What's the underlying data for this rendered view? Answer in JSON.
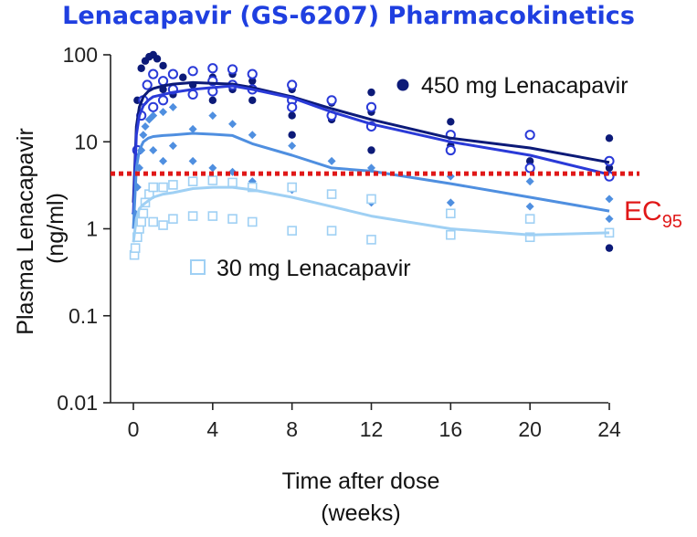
{
  "title": "Lenacapavir (GS-6207) Pharmacokinetics",
  "colors": {
    "title": "#1f3fe0",
    "dose_450": "#0c1a78",
    "dose_300": "#2a3ad8",
    "dose_100": "#4f8fe0",
    "dose_30": "#9fd0f4",
    "ec95": "#e01818"
  },
  "chart_data": {
    "type": "scatter",
    "title": "Lenacapavir (GS-6207) Pharmacokinetics",
    "xlabel_line1": "Time after dose",
    "xlabel_line2": "(weeks)",
    "ylabel_line1": "Plasma Lenacapavir",
    "ylabel_line2": "(ng/ml)",
    "xlim": [
      -1,
      24.5
    ],
    "ylim": [
      0.01,
      100
    ],
    "yscale": "log",
    "x_ticks": [
      0,
      4,
      8,
      12,
      16,
      20,
      24
    ],
    "x_tick_labels": [
      "0",
      "4",
      "8",
      "12",
      "16",
      "20",
      "24"
    ],
    "y_ticks": [
      0.01,
      0.1,
      1,
      10,
      100
    ],
    "y_tick_labels": [
      "0.01",
      "0.1",
      "1",
      "10",
      "100"
    ],
    "legend": [
      {
        "label": "450 mg Lenacapavir",
        "marker": "filled-circle"
      },
      {
        "label": "30 mg Lenacapavir",
        "marker": "open-square"
      }
    ],
    "reference_line": {
      "label_base": "EC",
      "label_sub": "95",
      "y": 4.3,
      "style": "dotted"
    },
    "series": [
      {
        "name": "450 mg Lenacapavir",
        "marker": "filled-circle",
        "mean_x": [
          0,
          0.15,
          0.3,
          0.5,
          0.75,
          1,
          1.5,
          2,
          3,
          4,
          5,
          6,
          8,
          10,
          12,
          16,
          20,
          24
        ],
        "mean_y": [
          2,
          15,
          25,
          33,
          38,
          41,
          44,
          46,
          48,
          47,
          46,
          42,
          33,
          24,
          18,
          11,
          8.5,
          5.8
        ],
        "points_x": [
          0.2,
          0.4,
          0.6,
          0.8,
          1,
          1,
          1.2,
          1.5,
          1.5,
          2,
          2,
          2.5,
          3,
          3,
          4,
          4,
          5,
          5,
          6,
          6,
          8,
          8,
          8,
          10,
          10,
          12,
          12,
          12,
          16,
          16,
          20,
          20,
          24,
          24,
          24
        ],
        "points_y": [
          30,
          70,
          85,
          95,
          100,
          60,
          90,
          75,
          40,
          60,
          35,
          55,
          65,
          45,
          55,
          30,
          60,
          40,
          50,
          30,
          40,
          20,
          12,
          28,
          18,
          37,
          22,
          8,
          17,
          9,
          12,
          6,
          11,
          0.6,
          5
        ]
      },
      {
        "name": "",
        "marker": "open-circle",
        "mean_x": [
          0,
          0.15,
          0.3,
          0.5,
          0.75,
          1,
          1.5,
          2,
          3,
          4,
          5,
          6,
          8,
          10,
          12,
          16,
          20,
          24
        ],
        "mean_y": [
          1.5,
          12,
          20,
          26,
          30,
          33,
          35,
          37,
          40,
          42,
          44,
          40,
          32,
          22,
          16,
          10,
          7,
          4.2
        ],
        "points_x": [
          0.2,
          0.4,
          0.5,
          0.7,
          1,
          1,
          1.5,
          1.5,
          2,
          2,
          3,
          3,
          4,
          4,
          4,
          5,
          5,
          6,
          6,
          8,
          8,
          8,
          10,
          10,
          12,
          12,
          16,
          16,
          20,
          20,
          24,
          24
        ],
        "points_y": [
          8,
          20,
          30,
          45,
          60,
          25,
          50,
          30,
          60,
          40,
          65,
          35,
          70,
          50,
          38,
          68,
          45,
          60,
          40,
          45,
          30,
          25,
          30,
          20,
          25,
          15,
          12,
          8,
          12,
          5,
          6,
          4
        ]
      },
      {
        "name": "",
        "marker": "filled-diamond",
        "mean_x": [
          0,
          0.15,
          0.3,
          0.5,
          0.75,
          1,
          1.5,
          2,
          3,
          4,
          5,
          6,
          8,
          10,
          12,
          16,
          20,
          24
        ],
        "mean_y": [
          1,
          5,
          8,
          10,
          11,
          11.5,
          11.8,
          12,
          12.5,
          12.2,
          11.8,
          9.5,
          7,
          5,
          4.6,
          3.3,
          2.3,
          1.6
        ],
        "points_x": [
          0.1,
          0.2,
          0.3,
          0.4,
          0.5,
          0.6,
          0.8,
          1,
          1,
          1.5,
          1.5,
          2,
          2,
          3,
          3,
          4,
          4,
          5,
          5,
          6,
          6,
          8,
          8,
          10,
          10,
          12,
          12,
          16,
          16,
          20,
          20,
          24,
          24
        ],
        "points_y": [
          1.5,
          3,
          5,
          8,
          12,
          15,
          18,
          20,
          8,
          22,
          6,
          25,
          9,
          14,
          6,
          20,
          5,
          16,
          4.5,
          12,
          3.5,
          9,
          2.8,
          6,
          2.5,
          5,
          2,
          4,
          2,
          3.5,
          1.8,
          2.2,
          1.3
        ]
      },
      {
        "name": "30 mg Lenacapavir",
        "marker": "open-square",
        "mean_x": [
          0,
          0.15,
          0.3,
          0.5,
          0.75,
          1,
          1.5,
          2,
          3,
          4,
          5,
          6,
          8,
          10,
          12,
          16,
          20,
          24
        ],
        "mean_y": [
          0.7,
          1.3,
          1.7,
          1.9,
          2.1,
          2.3,
          2.5,
          2.6,
          2.9,
          3.0,
          3.0,
          2.8,
          2.3,
          1.8,
          1.4,
          1.0,
          0.85,
          0.9
        ],
        "points_x": [
          0.05,
          0.1,
          0.2,
          0.3,
          0.4,
          0.5,
          0.6,
          0.8,
          1,
          1,
          1.5,
          1.5,
          2,
          2,
          3,
          3,
          4,
          4,
          5,
          5,
          6,
          6,
          8,
          8,
          10,
          10,
          12,
          12,
          16,
          16,
          20,
          20,
          24
        ],
        "points_y": [
          0.5,
          0.6,
          0.8,
          1,
          1.2,
          1.5,
          2,
          2.5,
          3,
          1.2,
          3,
          1.1,
          3.2,
          1.3,
          3.5,
          1.4,
          3.6,
          1.4,
          3.4,
          1.3,
          3.0,
          1.2,
          3.0,
          0.95,
          2.5,
          0.95,
          2.2,
          0.75,
          1.5,
          0.85,
          1.3,
          0.8,
          0.9
        ]
      }
    ]
  }
}
